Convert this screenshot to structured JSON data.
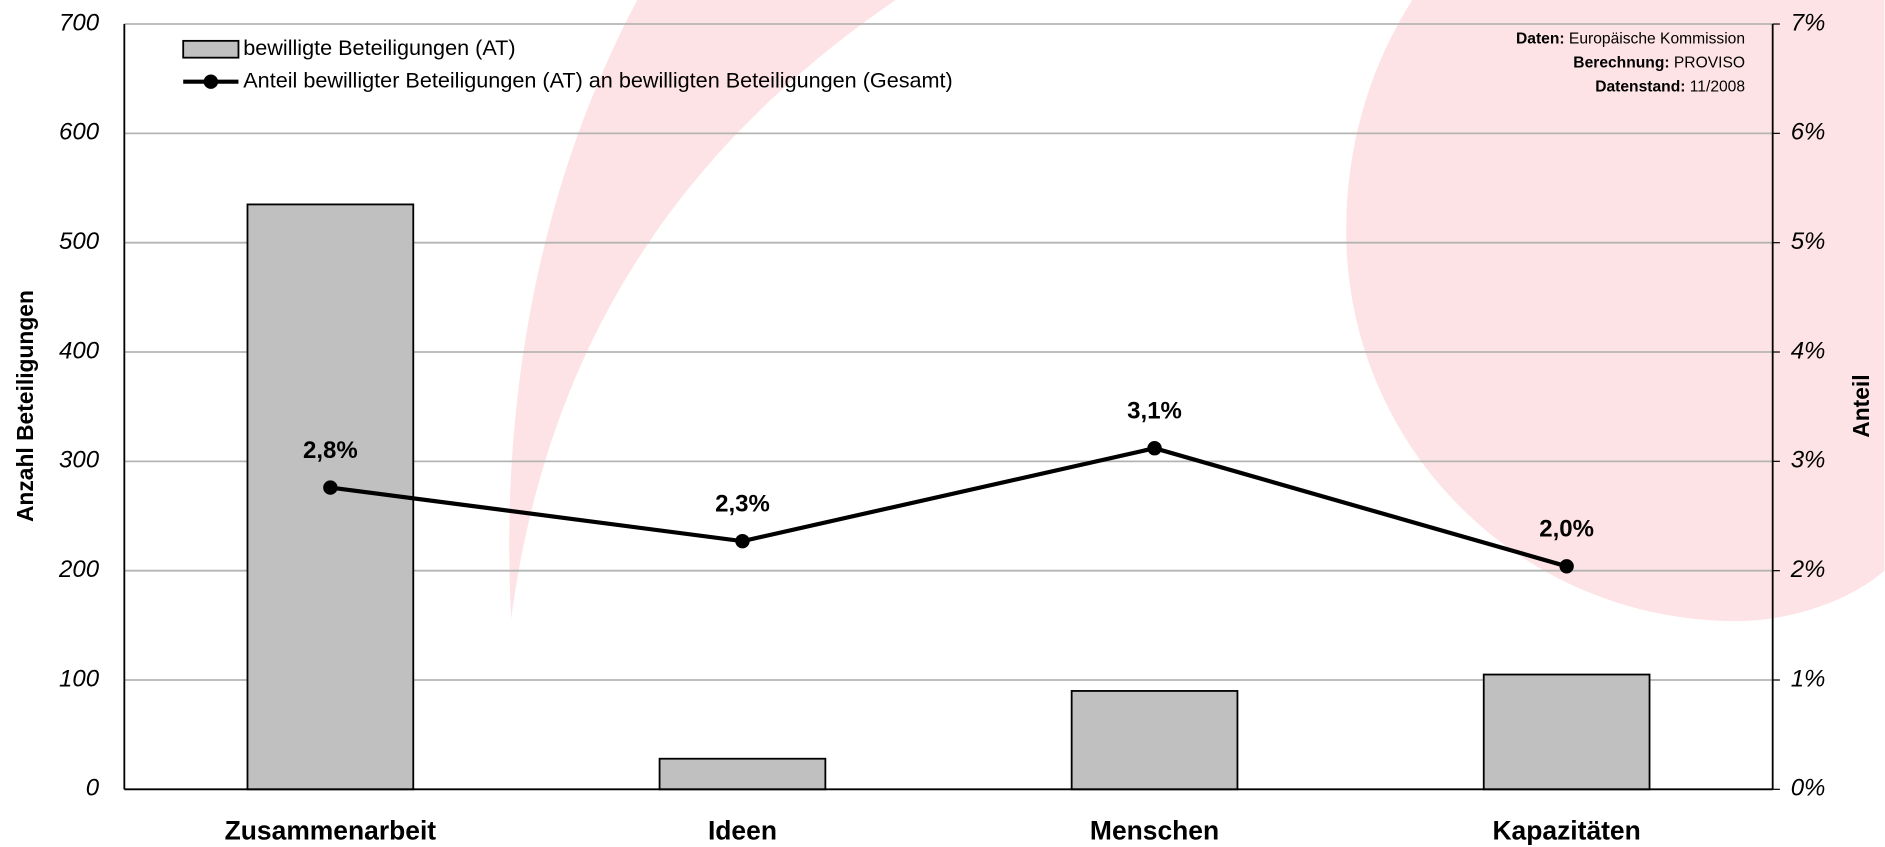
{
  "chart_data": {
    "type": "bar",
    "categories": [
      "Zusammenarbeit",
      "Ideen",
      "Menschen",
      "Kapazitäten"
    ],
    "series": [
      {
        "name": "bewilligte Beteiligungen (AT)",
        "type": "bar",
        "color": "#c0c0c0",
        "values": [
          535,
          28,
          90,
          105
        ]
      },
      {
        "name": "Anteil bewilligter Beteiligungen (AT) an bewilligten Beteiligungen (Gesamt)",
        "type": "line",
        "axis": "y2",
        "color": "#000000",
        "values": [
          2.76,
          2.27,
          3.12,
          2.04
        ],
        "value_labels": [
          "2,8%",
          "2,3%",
          "3,1%",
          "2,0%"
        ]
      }
    ],
    "ylim": [
      0,
      700
    ],
    "yticks": [
      0,
      100,
      200,
      300,
      400,
      500,
      600,
      700
    ],
    "y2lim": [
      0,
      7
    ],
    "y2ticks": [
      {
        "value": 0,
        "label": "0%"
      },
      {
        "value": 1,
        "label": "1%"
      },
      {
        "value": 2,
        "label": "2%"
      },
      {
        "value": 3,
        "label": "3%"
      },
      {
        "value": 4,
        "label": "4%"
      },
      {
        "value": 5,
        "label": "5%"
      },
      {
        "value": 6,
        "label": "6%"
      },
      {
        "value": 7,
        "label": "7%"
      }
    ],
    "y_label": "Anzahl Beteiligungen",
    "y2_label": "Anteil",
    "grid": true,
    "legend": "top-left",
    "source": [
      {
        "label": "Daten:",
        "text": "Europäische Kommission"
      },
      {
        "label": "Berechnung:",
        "text": "PROVISO"
      },
      {
        "label": "Datenstand:",
        "text": "11/2008"
      }
    ]
  }
}
